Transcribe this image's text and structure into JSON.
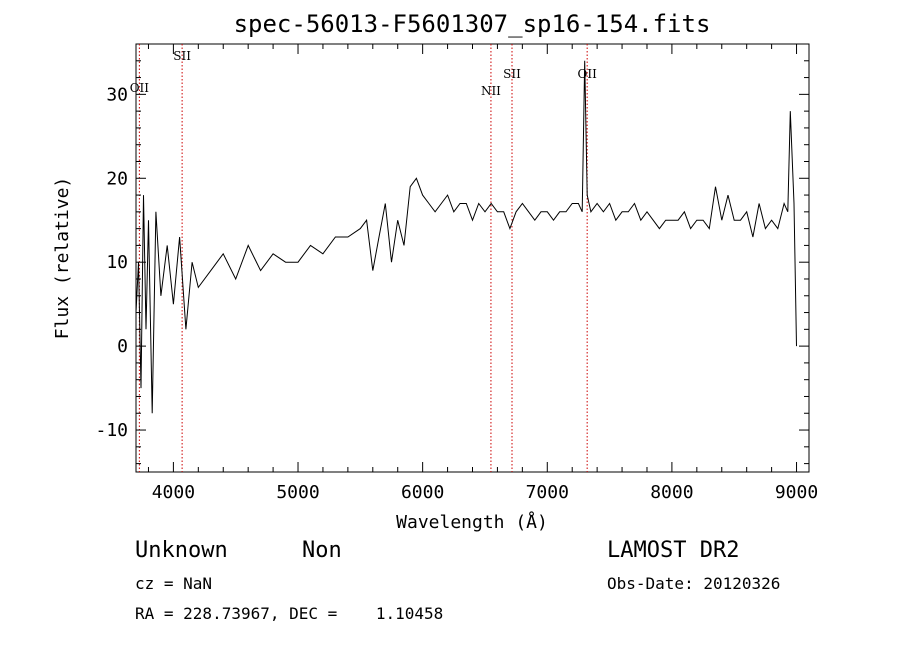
{
  "chart_data": {
    "type": "line",
    "title": "spec-56013-F5601307_sp16-154.fits",
    "xlabel": "Wavelength (Å)",
    "ylabel": "Flux (relative)",
    "xlim": [
      3700,
      9100
    ],
    "ylim": [
      -15,
      36
    ],
    "xticks": [
      4000,
      5000,
      6000,
      7000,
      8000,
      9000
    ],
    "yticks": [
      -10,
      0,
      10,
      20,
      30
    ],
    "grid": false,
    "series": [
      {
        "color": "#000000",
        "x": [
          3700,
          3720,
          3740,
          3760,
          3780,
          3800,
          3830,
          3860,
          3900,
          3950,
          4000,
          4050,
          4100,
          4150,
          4200,
          4300,
          4400,
          4500,
          4600,
          4700,
          4800,
          4900,
          5000,
          5100,
          5200,
          5300,
          5400,
          5500,
          5550,
          5600,
          5650,
          5700,
          5750,
          5800,
          5850,
          5900,
          5950,
          6000,
          6050,
          6100,
          6150,
          6200,
          6250,
          6300,
          6350,
          6400,
          6450,
          6500,
          6550,
          6600,
          6650,
          6700,
          6750,
          6800,
          6850,
          6900,
          6950,
          7000,
          7050,
          7100,
          7150,
          7200,
          7250,
          7280,
          7300,
          7320,
          7350,
          7400,
          7450,
          7500,
          7550,
          7600,
          7650,
          7700,
          7750,
          7800,
          7850,
          7900,
          7950,
          8000,
          8050,
          8100,
          8150,
          8200,
          8250,
          8300,
          8350,
          8400,
          8450,
          8500,
          8550,
          8600,
          8650,
          8700,
          8750,
          8800,
          8850,
          8900,
          8930,
          8950,
          8980,
          9000
        ],
        "y": [
          4,
          10,
          -5,
          18,
          2,
          15,
          -8,
          16,
          6,
          12,
          5,
          13,
          2,
          10,
          7,
          9,
          11,
          8,
          12,
          9,
          11,
          10,
          10,
          12,
          11,
          13,
          13,
          14,
          15,
          9,
          13,
          17,
          10,
          15,
          12,
          19,
          20,
          18,
          17,
          16,
          17,
          18,
          16,
          17,
          17,
          15,
          17,
          16,
          17,
          16,
          16,
          14,
          16,
          17,
          16,
          15,
          16,
          16,
          15,
          16,
          16,
          17,
          17,
          16,
          34,
          18,
          16,
          17,
          16,
          17,
          15,
          16,
          16,
          17,
          15,
          16,
          15,
          14,
          15,
          15,
          15,
          16,
          14,
          15,
          15,
          14,
          19,
          15,
          18,
          15,
          15,
          16,
          13,
          17,
          14,
          15,
          14,
          17,
          16,
          28,
          17,
          0
        ]
      }
    ],
    "line_markers": [
      {
        "label": "OII",
        "wavelength": 3727
      },
      {
        "label": "SII",
        "wavelength": 4070
      },
      {
        "label": "NII",
        "wavelength": 6548
      },
      {
        "label": "SII",
        "wavelength": 6717
      },
      {
        "label": "OII",
        "wavelength": 7320
      }
    ],
    "marker_color": "#cc0000"
  },
  "info": {
    "class": "Unknown",
    "subclass": "Non",
    "cz": "cz = NaN",
    "coords": "RA = 228.73967, DEC =    1.10458",
    "survey": "LAMOST DR2",
    "obs_date": "Obs-Date: 20120326"
  }
}
